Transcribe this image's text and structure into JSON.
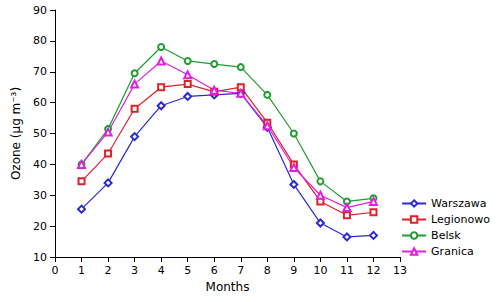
{
  "chart_data": {
    "type": "line",
    "x_label": "Months",
    "y_label": "Ozone (µg m⁻³)",
    "x": [
      1,
      2,
      3,
      4,
      5,
      6,
      7,
      8,
      9,
      10,
      11,
      12
    ],
    "series": [
      {
        "name": "Warszawa",
        "color": "#2a2ad0",
        "marker": "diamond",
        "values": [
          25.5,
          34,
          49,
          59,
          62,
          62.5,
          63,
          52,
          33.5,
          21,
          16.5,
          17
        ]
      },
      {
        "name": "Legionowo",
        "color": "#e0202a",
        "marker": "square",
        "values": [
          34.5,
          43.5,
          58,
          65,
          66,
          63.5,
          65,
          53.5,
          40,
          28,
          23.5,
          24.5
        ]
      },
      {
        "name": "Belsk",
        "color": "#1f9e2f",
        "marker": "circle",
        "values": [
          40,
          51.5,
          69.5,
          78,
          73.5,
          72.5,
          71.5,
          62.5,
          50,
          34.5,
          28,
          29
        ]
      },
      {
        "name": "Granica",
        "color": "#e020e0",
        "marker": "triangle",
        "values": [
          40,
          50.5,
          66,
          73.5,
          69,
          64,
          63,
          52.5,
          39,
          30,
          26,
          28
        ]
      }
    ],
    "xlim": [
      0,
      13
    ],
    "xticks": [
      0,
      1,
      2,
      3,
      4,
      5,
      6,
      7,
      8,
      9,
      10,
      11,
      12,
      13
    ],
    "ylim": [
      10,
      90
    ],
    "yticks": [
      10,
      20,
      30,
      40,
      50,
      60,
      70,
      80,
      90
    ],
    "grid": false,
    "legend": "lower right"
  }
}
